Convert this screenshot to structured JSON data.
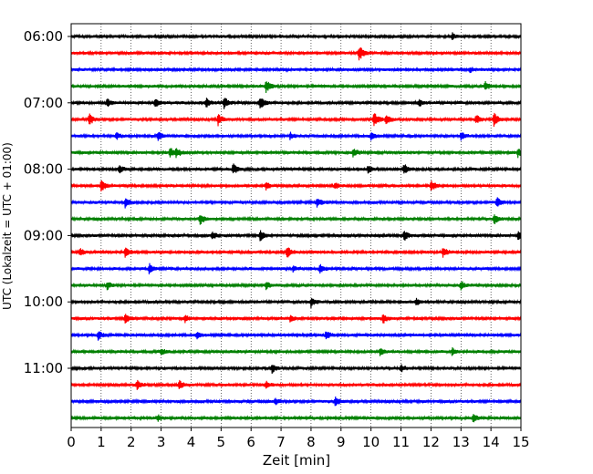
{
  "chart_data": {
    "type": "line",
    "title": "",
    "xlabel": "Zeit  [min]",
    "ylabel": "UTC (Lokalzeit = UTC + 01:00)",
    "xlim": [
      0,
      15
    ],
    "x_ticks": [
      0,
      1,
      2,
      3,
      4,
      5,
      6,
      7,
      8,
      9,
      10,
      11,
      12,
      13,
      14,
      15
    ],
    "y_tick_labels": [
      "06:00",
      "07:00",
      "08:00",
      "09:00",
      "10:00",
      "11:00"
    ],
    "y_tick_rows": [
      0,
      4,
      8,
      12,
      16,
      20
    ],
    "grid": "vertical dotted lines at each minute",
    "legend": "none",
    "row_color_cycle": [
      "#000000",
      "#ff0000",
      "#0000ff",
      "#008000"
    ],
    "traces": [
      {
        "start": "06:00",
        "events": [
          {
            "x": 12.7,
            "amp": 0.4
          }
        ]
      },
      {
        "start": "06:15",
        "events": [
          {
            "x": 9.6,
            "amp": 1.0
          }
        ]
      },
      {
        "start": "06:30",
        "events": [
          {
            "x": 13.3,
            "amp": 0.3
          }
        ]
      },
      {
        "start": "06:45",
        "events": [
          {
            "x": 6.5,
            "amp": 0.8
          },
          {
            "x": 13.8,
            "amp": 0.5
          }
        ]
      },
      {
        "start": "07:00",
        "events": [
          {
            "x": 1.2,
            "amp": 0.5
          },
          {
            "x": 2.8,
            "amp": 0.5
          },
          {
            "x": 4.5,
            "amp": 0.6
          },
          {
            "x": 5.1,
            "amp": 0.8
          },
          {
            "x": 6.3,
            "amp": 0.8
          },
          {
            "x": 11.6,
            "amp": 0.4
          }
        ]
      },
      {
        "start": "07:15",
        "events": [
          {
            "x": 0.6,
            "amp": 0.7
          },
          {
            "x": 4.9,
            "amp": 0.7
          },
          {
            "x": 10.1,
            "amp": 1.0
          },
          {
            "x": 10.5,
            "amp": 0.6
          },
          {
            "x": 13.5,
            "amp": 0.6
          },
          {
            "x": 14.1,
            "amp": 0.8
          }
        ]
      },
      {
        "start": "07:30",
        "events": [
          {
            "x": 1.5,
            "amp": 0.4
          },
          {
            "x": 2.9,
            "amp": 0.6
          },
          {
            "x": 7.3,
            "amp": 0.4
          },
          {
            "x": 10.0,
            "amp": 0.5
          },
          {
            "x": 13.0,
            "amp": 0.5
          }
        ]
      },
      {
        "start": "07:45",
        "events": [
          {
            "x": 3.3,
            "amp": 0.6
          },
          {
            "x": 3.5,
            "amp": 0.6
          },
          {
            "x": 9.4,
            "amp": 0.6
          },
          {
            "x": 14.9,
            "amp": 0.5
          }
        ]
      },
      {
        "start": "08:00",
        "events": [
          {
            "x": 1.6,
            "amp": 0.5
          },
          {
            "x": 5.4,
            "amp": 0.7
          },
          {
            "x": 9.9,
            "amp": 0.4
          },
          {
            "x": 11.1,
            "amp": 0.7
          }
        ]
      },
      {
        "start": "08:15",
        "events": [
          {
            "x": 1.0,
            "amp": 0.7
          },
          {
            "x": 6.5,
            "amp": 0.5
          },
          {
            "x": 8.8,
            "amp": 0.4
          },
          {
            "x": 12.0,
            "amp": 0.7
          }
        ]
      },
      {
        "start": "08:30",
        "events": [
          {
            "x": 1.8,
            "amp": 0.6
          },
          {
            "x": 8.2,
            "amp": 0.6
          },
          {
            "x": 14.2,
            "amp": 0.6
          }
        ]
      },
      {
        "start": "08:45",
        "events": [
          {
            "x": 4.3,
            "amp": 0.7
          },
          {
            "x": 14.1,
            "amp": 0.7
          }
        ]
      },
      {
        "start": "09:00",
        "events": [
          {
            "x": 4.7,
            "amp": 0.5
          },
          {
            "x": 6.3,
            "amp": 0.7
          },
          {
            "x": 11.1,
            "amp": 0.6
          },
          {
            "x": 14.9,
            "amp": 0.6
          }
        ]
      },
      {
        "start": "09:15",
        "events": [
          {
            "x": 0.3,
            "amp": 0.4
          },
          {
            "x": 1.8,
            "amp": 0.7
          },
          {
            "x": 7.2,
            "amp": 0.7
          },
          {
            "x": 12.4,
            "amp": 0.6
          }
        ]
      },
      {
        "start": "09:30",
        "events": [
          {
            "x": 2.6,
            "amp": 0.6
          },
          {
            "x": 7.4,
            "amp": 0.4
          },
          {
            "x": 8.3,
            "amp": 0.6
          }
        ]
      },
      {
        "start": "09:45",
        "events": [
          {
            "x": 1.2,
            "amp": 0.5
          },
          {
            "x": 6.5,
            "amp": 0.5
          },
          {
            "x": 13.0,
            "amp": 0.5
          }
        ]
      },
      {
        "start": "10:00",
        "events": [
          {
            "x": 8.0,
            "amp": 0.6
          },
          {
            "x": 11.5,
            "amp": 0.4
          }
        ]
      },
      {
        "start": "10:15",
        "events": [
          {
            "x": 1.8,
            "amp": 0.6
          },
          {
            "x": 3.8,
            "amp": 0.4
          },
          {
            "x": 7.3,
            "amp": 0.4
          },
          {
            "x": 10.4,
            "amp": 0.6
          }
        ]
      },
      {
        "start": "10:30",
        "events": [
          {
            "x": 0.9,
            "amp": 0.6
          },
          {
            "x": 4.2,
            "amp": 0.4
          },
          {
            "x": 8.5,
            "amp": 0.5
          }
        ]
      },
      {
        "start": "10:45",
        "events": [
          {
            "x": 3.0,
            "amp": 0.4
          },
          {
            "x": 10.3,
            "amp": 0.5
          },
          {
            "x": 12.7,
            "amp": 0.4
          }
        ]
      },
      {
        "start": "11:00",
        "events": [
          {
            "x": 6.7,
            "amp": 0.5
          },
          {
            "x": 11.0,
            "amp": 0.4
          }
        ]
      },
      {
        "start": "11:15",
        "events": [
          {
            "x": 2.2,
            "amp": 0.5
          },
          {
            "x": 3.6,
            "amp": 0.6
          },
          {
            "x": 6.5,
            "amp": 0.4
          }
        ]
      },
      {
        "start": "11:30",
        "events": [
          {
            "x": 6.8,
            "amp": 0.4
          },
          {
            "x": 8.8,
            "amp": 0.6
          }
        ]
      },
      {
        "start": "11:45",
        "events": [
          {
            "x": 2.9,
            "amp": 0.4
          },
          {
            "x": 13.4,
            "amp": 0.6
          }
        ]
      }
    ]
  }
}
